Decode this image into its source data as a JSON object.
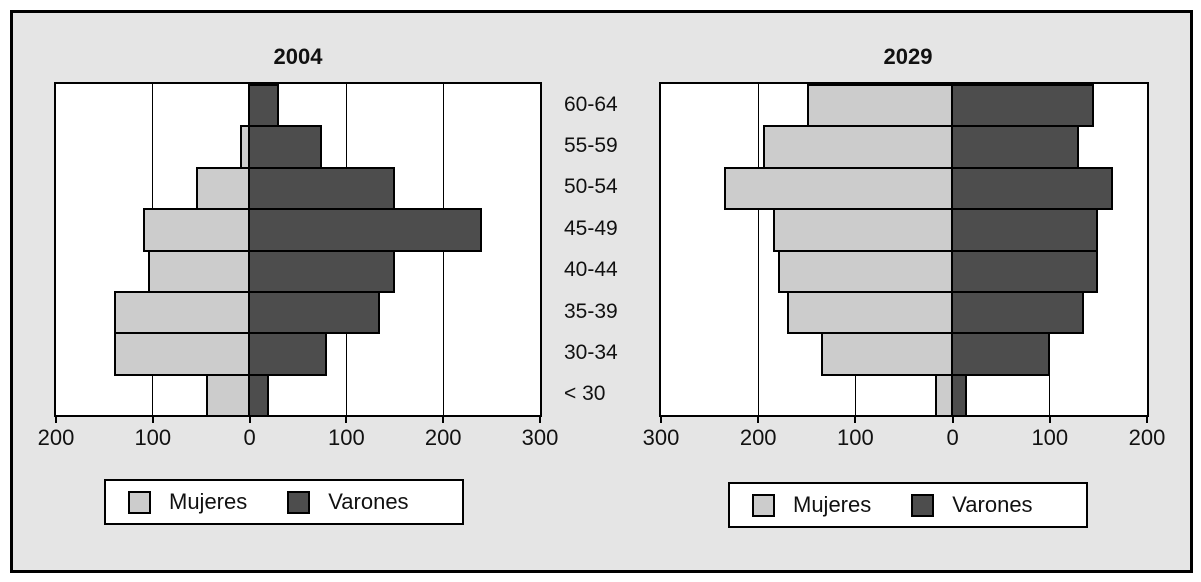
{
  "figure": {
    "background": "#e5e5e5",
    "plot_background": "#ffffff",
    "mujeres_color": "#cccccc",
    "varones_color": "#4d4d4d"
  },
  "chart_data": [
    {
      "type": "bar",
      "subtype": "population-pyramid",
      "title": "2004",
      "categories": [
        "60-64",
        "55-59",
        "50-54",
        "45-49",
        "40-44",
        "35-39",
        "30-34",
        "< 30"
      ],
      "series": [
        {
          "name": "Mujeres",
          "side": "left",
          "color": "#cccccc",
          "values": [
            0,
            10,
            55,
            110,
            105,
            140,
            140,
            45
          ]
        },
        {
          "name": "Varones",
          "side": "right",
          "color": "#4d4d4d",
          "values": [
            30,
            75,
            150,
            240,
            150,
            135,
            80,
            20
          ]
        }
      ],
      "xlim": [
        -200,
        300
      ],
      "xtick_values": [
        -200,
        -100,
        0,
        100,
        200,
        300
      ],
      "xtick_labels": [
        "200",
        "100",
        "0",
        "100",
        "200",
        "300"
      ],
      "grid": "on",
      "legend": [
        "Mujeres",
        "Varones"
      ],
      "legend_position": "bottom"
    },
    {
      "type": "bar",
      "subtype": "population-pyramid",
      "title": "2029",
      "categories": [
        "60-64",
        "55-59",
        "50-54",
        "45-49",
        "40-44",
        "35-39",
        "30-34",
        "< 30"
      ],
      "series": [
        {
          "name": "Mujeres",
          "side": "left",
          "color": "#cccccc",
          "values": [
            150,
            195,
            235,
            185,
            180,
            170,
            135,
            18
          ]
        },
        {
          "name": "Varones",
          "side": "right",
          "color": "#4d4d4d",
          "values": [
            145,
            130,
            165,
            150,
            150,
            135,
            100,
            15
          ]
        }
      ],
      "xlim": [
        -300,
        200
      ],
      "xtick_values": [
        -300,
        -200,
        -100,
        0,
        100,
        200
      ],
      "xtick_labels": [
        "300",
        "200",
        "100",
        "0",
        "100",
        "200"
      ],
      "grid": "on",
      "legend": [
        "Mujeres",
        "Varones"
      ],
      "legend_position": "bottom"
    }
  ]
}
